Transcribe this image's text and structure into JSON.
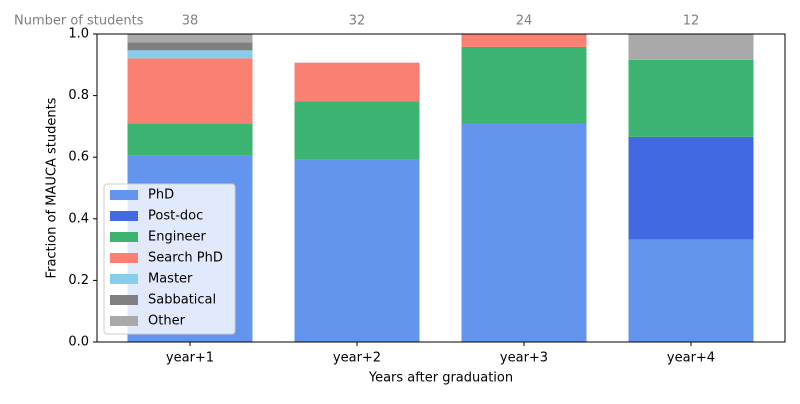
{
  "chart_data": {
    "type": "stacked_bar",
    "categories": [
      "year+1",
      "year+2",
      "year+3",
      "year+4"
    ],
    "series": [
      {
        "name": "PhD",
        "color": "#6495ed",
        "values": [
          0.605,
          0.594,
          0.708,
          0.333
        ]
      },
      {
        "name": "Post-doc",
        "color": "#4169e1",
        "values": [
          0,
          0,
          0,
          0.333
        ]
      },
      {
        "name": "Engineer",
        "color": "#3cb371",
        "values": [
          0.105,
          0.188,
          0.25,
          0.25
        ]
      },
      {
        "name": "Search PhD",
        "color": "#fa8072",
        "values": [
          0.211,
          0.125,
          0.042,
          0
        ]
      },
      {
        "name": "Master",
        "color": "#87ceeb",
        "values": [
          0.026,
          0,
          0,
          0
        ]
      },
      {
        "name": "Sabbatical",
        "color": "#808080",
        "values": [
          0.026,
          0,
          0,
          0
        ]
      },
      {
        "name": "Other",
        "color": "#a9a9a9",
        "values": [
          0.026,
          0,
          0,
          0.083
        ]
      }
    ],
    "counts_label": "Number of students",
    "counts": [
      38,
      32,
      24,
      12
    ],
    "xlabel": "Years after graduation",
    "ylabel": "Fraction of MAUCA students",
    "ylim": [
      0,
      1
    ],
    "yticks": [
      {
        "value": 0,
        "label": "0.0"
      },
      {
        "value": 0.2,
        "label": "0.2"
      },
      {
        "value": 0.4,
        "label": "0.4"
      },
      {
        "value": 0.6,
        "label": "0.6"
      },
      {
        "value": 0.8,
        "label": "0.8"
      },
      {
        "value": 1,
        "label": "1.0"
      }
    ],
    "legend": "lower left"
  }
}
